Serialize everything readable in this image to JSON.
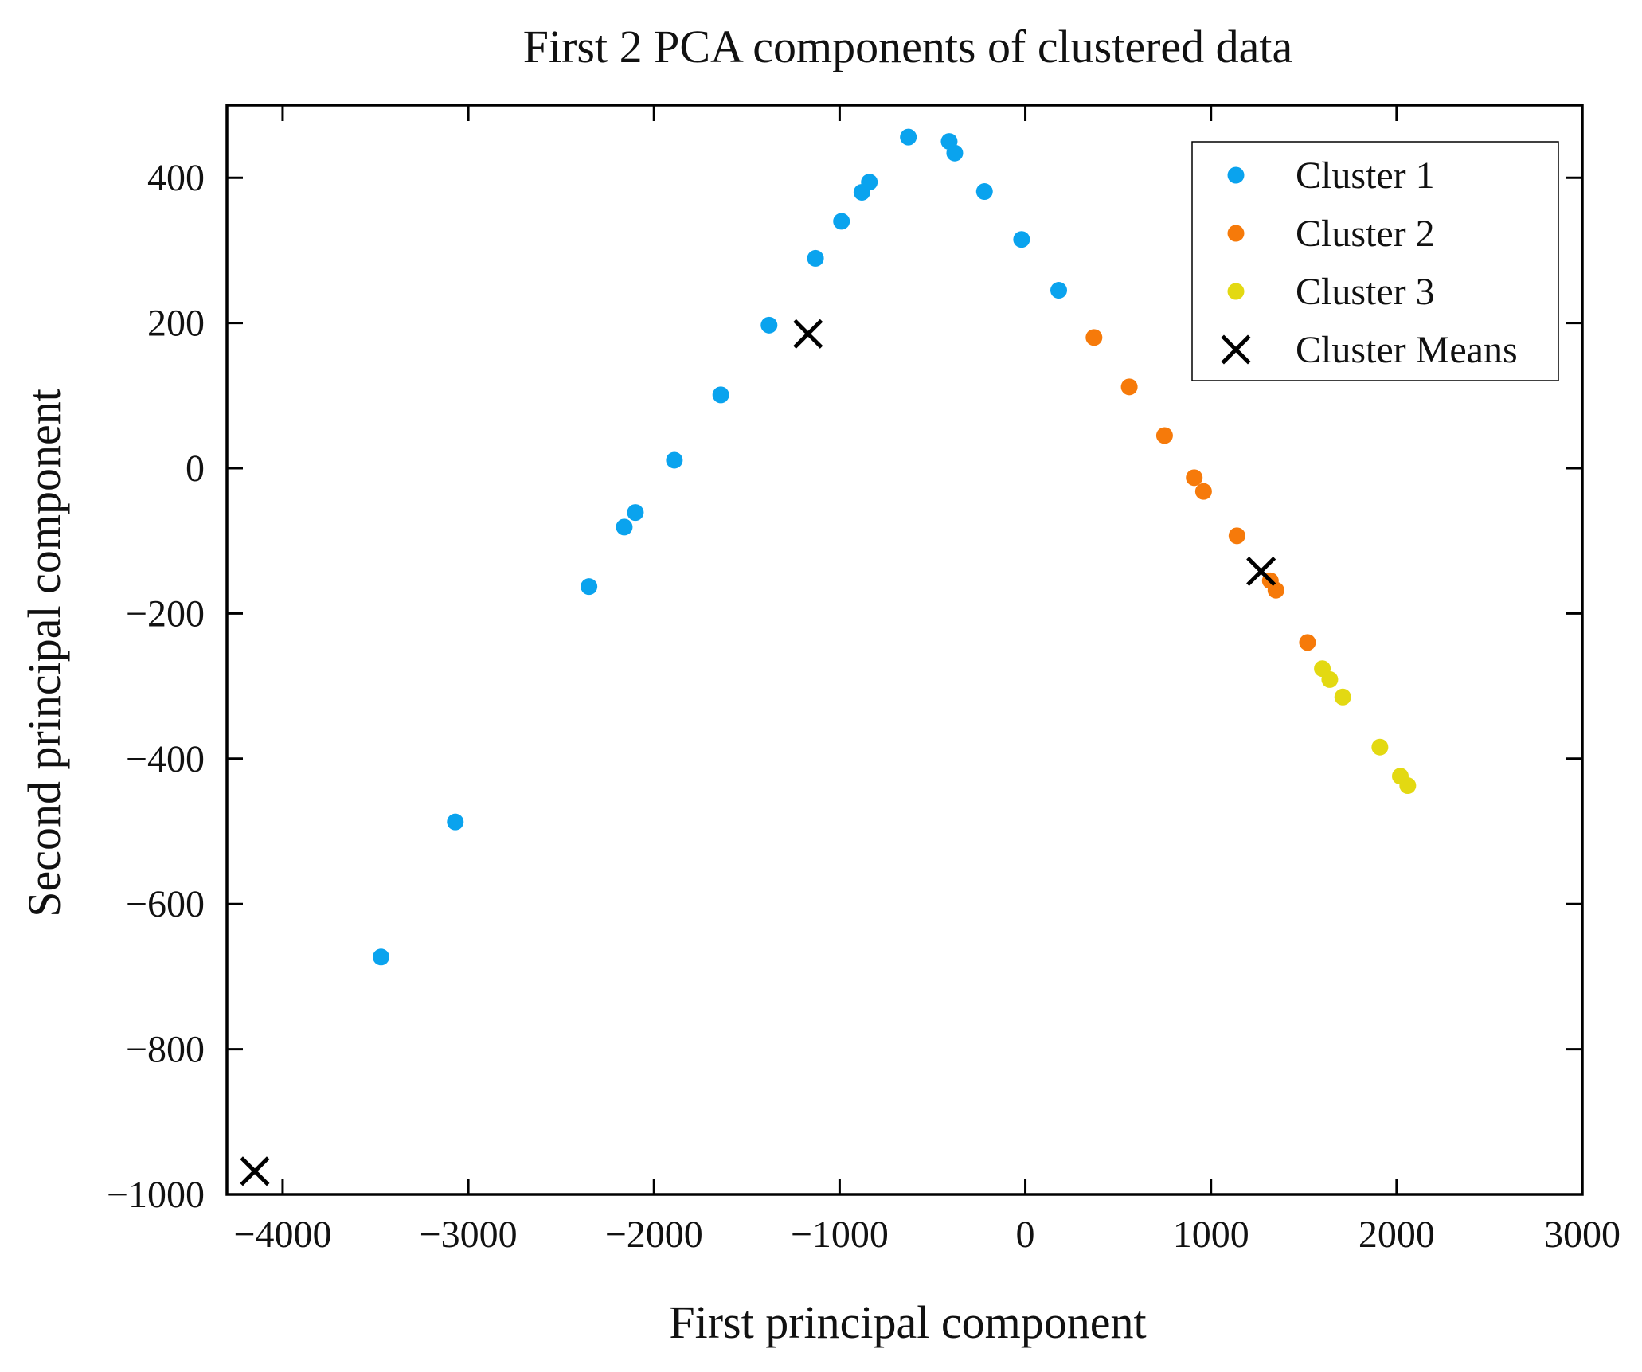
{
  "chart_data": {
    "type": "scatter",
    "title": "First 2 PCA components of clustered data",
    "xlabel": "First principal component",
    "ylabel": "Second principal component",
    "xlim": [
      -4300,
      3000
    ],
    "ylim": [
      -1000,
      500
    ],
    "x_ticks": [
      -4000,
      -3000,
      -2000,
      -1000,
      0,
      1000,
      2000,
      3000
    ],
    "x_tick_labels": [
      "−4000",
      "−3000",
      "−2000",
      "−1000",
      "0",
      "1000",
      "2000",
      "3000"
    ],
    "y_ticks": [
      -1000,
      -800,
      -600,
      -400,
      -200,
      0,
      200,
      400
    ],
    "y_tick_labels": [
      "−1000",
      "−800",
      "−600",
      "−400",
      "−200",
      "0",
      "200",
      "400"
    ],
    "grid": false,
    "legend_position": "top-right",
    "series": [
      {
        "name": "Cluster 1",
        "marker": "circle",
        "color": "#0aa3ee",
        "points": [
          [
            -3470,
            -673
          ],
          [
            -3070,
            -487
          ],
          [
            -2350,
            -163
          ],
          [
            -2160,
            -81
          ],
          [
            -2100,
            -61
          ],
          [
            -1890,
            11
          ],
          [
            -1640,
            101
          ],
          [
            -1380,
            197
          ],
          [
            -1130,
            289
          ],
          [
            -990,
            340
          ],
          [
            -880,
            380
          ],
          [
            -840,
            394
          ],
          [
            -630,
            456
          ],
          [
            -410,
            450
          ],
          [
            -380,
            434
          ],
          [
            -220,
            381
          ],
          [
            -20,
            315
          ],
          [
            180,
            245
          ]
        ]
      },
      {
        "name": "Cluster 2",
        "marker": "circle",
        "color": "#f67a0a",
        "points": [
          [
            370,
            180
          ],
          [
            560,
            112
          ],
          [
            750,
            45
          ],
          [
            910,
            -13
          ],
          [
            960,
            -32
          ],
          [
            1140,
            -93
          ],
          [
            1320,
            -155
          ],
          [
            1350,
            -168
          ],
          [
            1520,
            -240
          ]
        ]
      },
      {
        "name": "Cluster 3",
        "marker": "circle",
        "color": "#e3d912",
        "points": [
          [
            1600,
            -276
          ],
          [
            1640,
            -291
          ],
          [
            1710,
            -315
          ],
          [
            1910,
            -384
          ],
          [
            2020,
            -424
          ],
          [
            2060,
            -437
          ]
        ]
      },
      {
        "name": "Cluster Means",
        "marker": "x",
        "color": "#000000",
        "points": [
          [
            -1170,
            185
          ],
          [
            1270,
            -142
          ],
          [
            -4150,
            -968
          ]
        ]
      }
    ]
  }
}
